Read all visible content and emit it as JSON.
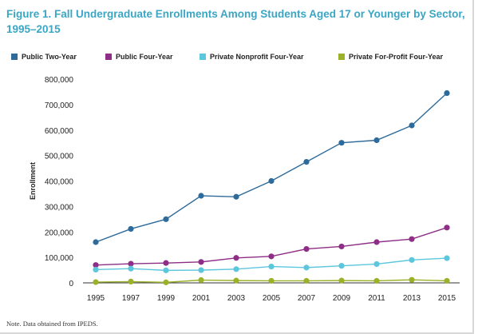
{
  "figure": {
    "title": "Figure 1. Fall Undergraduate Enrollments Among Students Aged 17 or Younger by Sector, 1995–2015",
    "note": "Note. Data obtained from IPEDS."
  },
  "chart_data": {
    "type": "line",
    "title": "Figure 1. Fall Undergraduate Enrollments Among Students Aged 17 or Younger by Sector, 1995–2015",
    "xlabel": "",
    "ylabel": "Enrollment",
    "x": [
      "1995",
      "1997",
      "1999",
      "2001",
      "2003",
      "2005",
      "2007",
      "2009",
      "2011",
      "2013",
      "2015"
    ],
    "ylim": [
      0,
      800000
    ],
    "yticks": [
      "0",
      "100,000",
      "200,000",
      "300,000",
      "400,000",
      "500,000",
      "600,000",
      "700,000",
      "800,000"
    ],
    "grid": false,
    "legend_position": "top",
    "series": [
      {
        "name": "Public Two-Year",
        "color": "#2e6b9b",
        "values": [
          160000,
          212000,
          250000,
          342000,
          338000,
          400000,
          475000,
          550000,
          560000,
          618000,
          745000
        ]
      },
      {
        "name": "Public Four-Year",
        "color": "#8e2e86",
        "values": [
          70000,
          75000,
          78000,
          82000,
          98000,
          104000,
          133000,
          143000,
          160000,
          172000,
          217000
        ]
      },
      {
        "name": "Private Nonprofit Four-Year",
        "color": "#5cc6dd",
        "values": [
          52000,
          56000,
          49000,
          50000,
          54000,
          64000,
          60000,
          67000,
          74000,
          90000,
          97000
        ]
      },
      {
        "name": "Private For-Profit Four-Year",
        "color": "#9ab22a",
        "values": [
          3000,
          5000,
          2000,
          11000,
          9000,
          8000,
          8000,
          9000,
          8000,
          12000,
          8000
        ]
      }
    ]
  }
}
